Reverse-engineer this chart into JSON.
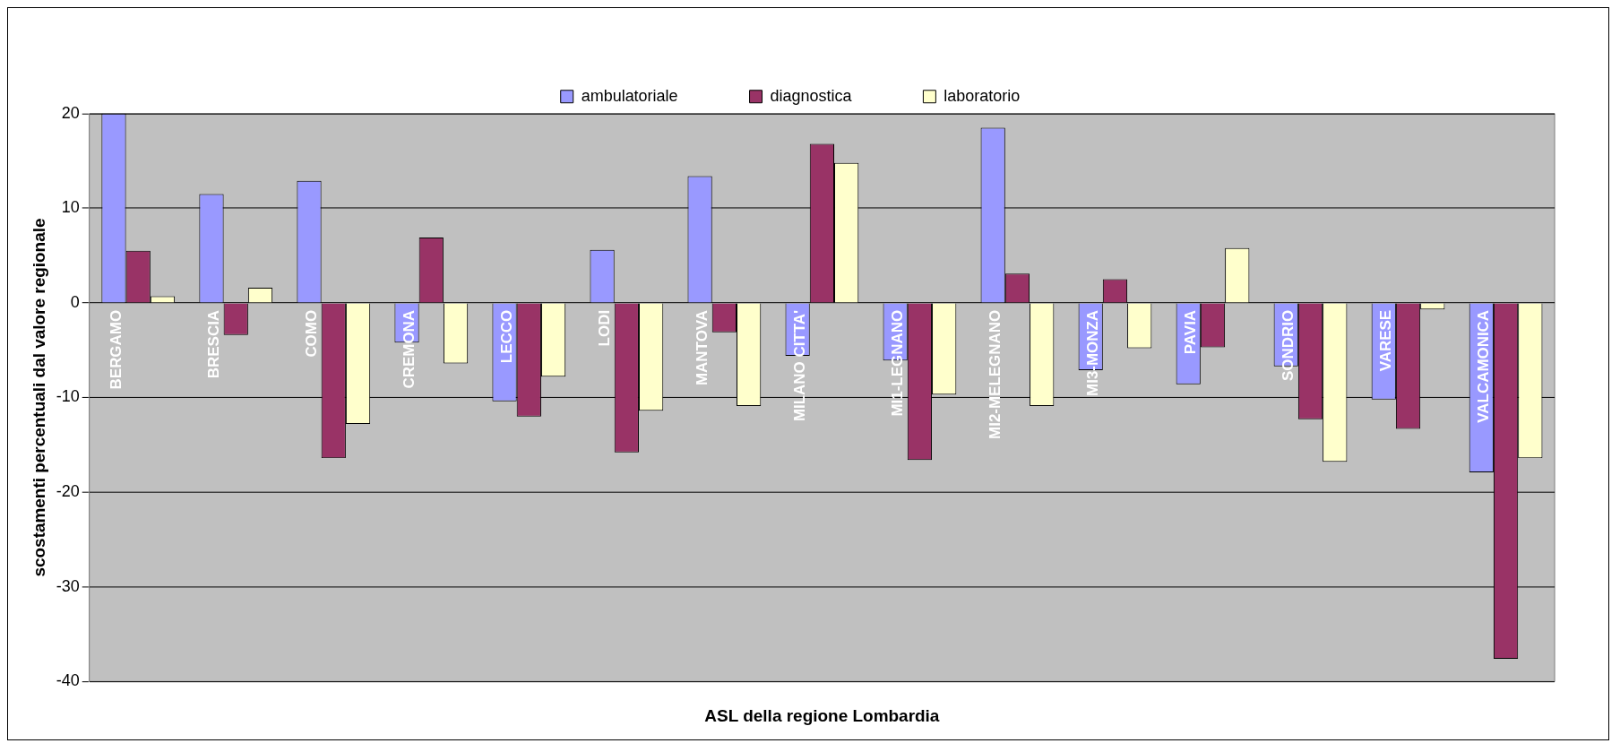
{
  "chart_data": {
    "type": "bar",
    "xlabel": "ASL della regione Lombardia",
    "ylabel": "scostamenti percentuali dal valore regionale",
    "categories": [
      "BERGAMO",
      "BRESCIA",
      "COMO",
      "CREMONA",
      "LECCO",
      "LODI",
      "MANTOVA",
      "MILANO CITTA'",
      "MI1-LEGNANO",
      "MI2-MELEGNANO",
      "MI3-MONZA",
      "PAVIA",
      "SONDRIO",
      "VARESE",
      "VALCAMONICA"
    ],
    "series": [
      {
        "name": "ambulatoriale",
        "color": "#9999ff",
        "values": [
          20,
          11.5,
          12.9,
          -4.2,
          -10.4,
          5.6,
          13.4,
          -5.6,
          -6.1,
          18.5,
          -7.1,
          -8.6,
          -6.7,
          -10.2,
          -17.9
        ]
      },
      {
        "name": "diagnostica",
        "color": "#993366",
        "values": [
          5.5,
          -3.4,
          -16.4,
          6.9,
          -12.0,
          -15.8,
          -3.1,
          16.8,
          -16.6,
          3.1,
          2.5,
          -4.7,
          -12.3,
          -13.3,
          -37.6
        ]
      },
      {
        "name": "laboratorio",
        "color": "#ffffcc",
        "values": [
          0.7,
          1.6,
          -12.8,
          -6.4,
          -7.8,
          -11.4,
          -10.9,
          14.8,
          -9.7,
          -10.9,
          -4.8,
          5.8,
          -16.8,
          -0.7,
          -16.4
        ]
      }
    ],
    "ylim": [
      -40,
      20
    ],
    "yticks": [
      -40,
      -30,
      -20,
      -10,
      0,
      10,
      20
    ],
    "grid": "y",
    "legend": "top"
  }
}
